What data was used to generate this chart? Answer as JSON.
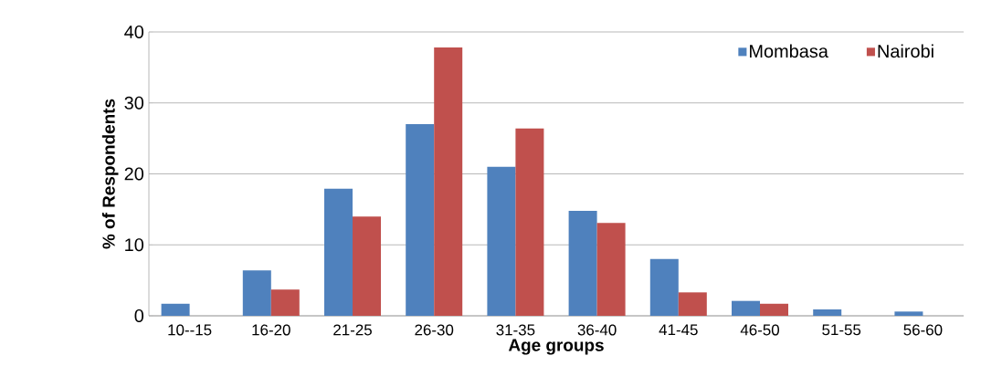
{
  "chart_data": {
    "type": "bar",
    "xlabel": "Age groups",
    "ylabel": "% of Respondents",
    "categories": [
      "10--15",
      "16-20",
      "21-25",
      "26-30",
      "31-35",
      "36-40",
      "41-45",
      "46-50",
      "51-55",
      "56-60"
    ],
    "series": [
      {
        "name": "Mombasa",
        "color": "#4f81bd",
        "values": [
          1.7,
          6.4,
          17.9,
          27.0,
          21.0,
          14.8,
          8.0,
          2.1,
          0.9,
          0.6
        ]
      },
      {
        "name": "Nairobi",
        "color": "#c0504d",
        "values": [
          0,
          3.7,
          14.0,
          37.8,
          26.4,
          13.1,
          3.3,
          1.7,
          0,
          0
        ]
      }
    ],
    "ylim": [
      0,
      40
    ],
    "yticks": [
      0,
      10,
      20,
      30,
      40
    ],
    "grid": "y",
    "legend": "top right"
  }
}
